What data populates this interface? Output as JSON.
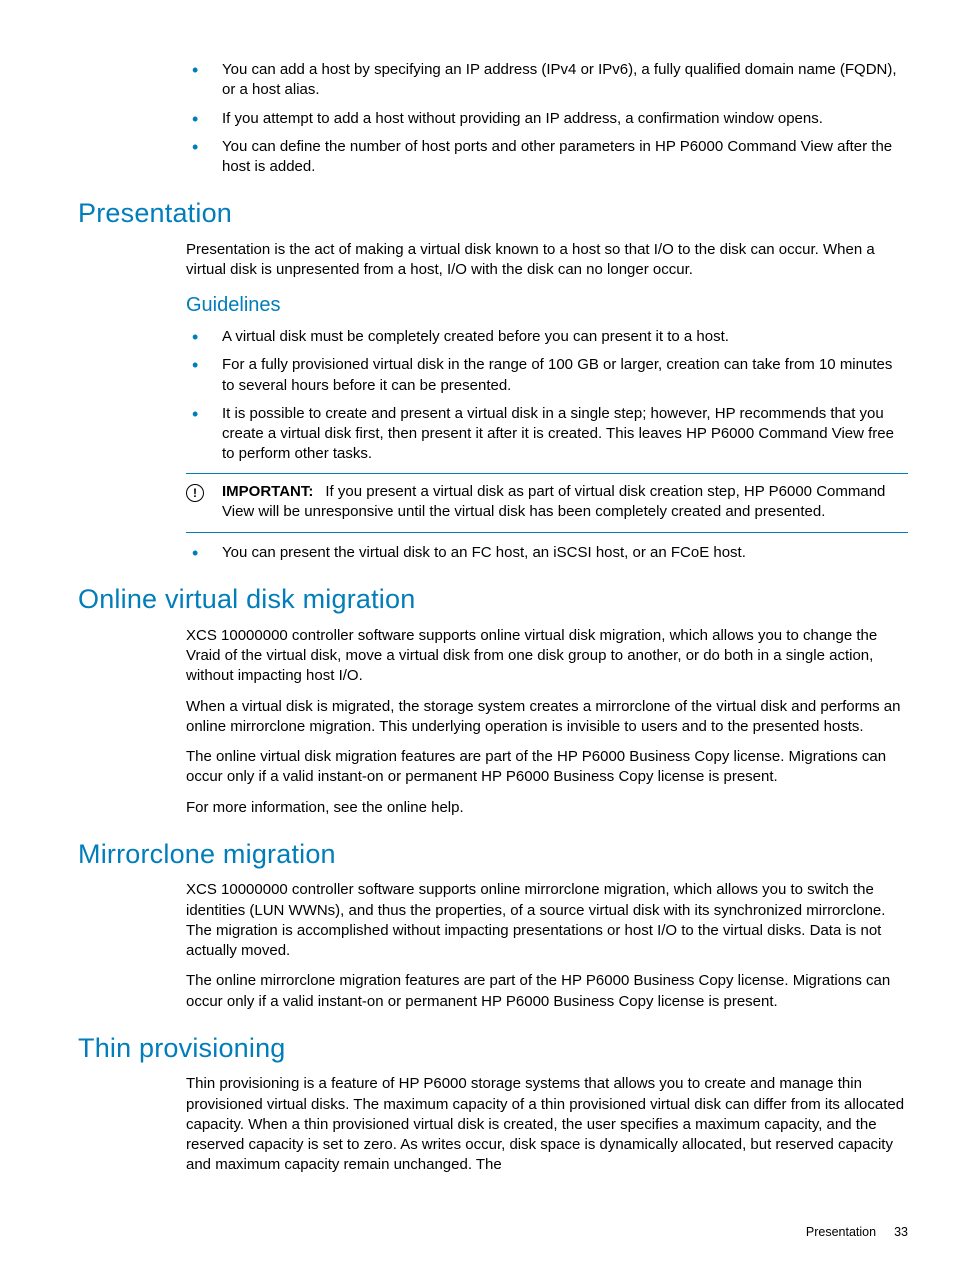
{
  "colors": {
    "accent": "#007dba",
    "text": "#000000",
    "bg": "#ffffff"
  },
  "intro_list": [
    "You can add a host by specifying an IP address (IPv4 or IPv6), a fully qualified domain name (FQDN), or a host alias.",
    "If you attempt to add a host without providing an IP address, a confirmation window opens.",
    "You can define the number of host ports and other parameters in HP P6000 Command View after the host is added."
  ],
  "presentation": {
    "heading": "Presentation",
    "para": "Presentation is the act of making a virtual disk known to a host so that I/O to the disk can occur. When a virtual disk is unpresented from a host, I/O with the disk can no longer occur.",
    "guidelines_heading": "Guidelines",
    "guidelines_pre": [
      "A virtual disk must be completely created before you can present it to a host.",
      "For a fully provisioned virtual disk in the range of 100 GB or larger, creation can take from 10 minutes to several hours before it can be presented.",
      "It is possible to create and present a virtual disk in a single step; however, HP recommends that you create a virtual disk first, then present it after it is created. This leaves HP P6000 Command View free to perform other tasks."
    ],
    "important_label": "IMPORTANT:",
    "important_text": "If you present a virtual disk as part of virtual disk creation step, HP P6000 Command View will be unresponsive until the virtual disk has been completely created and presented.",
    "guidelines_post": [
      "You can present the virtual disk to an FC host, an iSCSI host, or an FCoE host."
    ]
  },
  "migration": {
    "heading": "Online virtual disk migration",
    "p1": "XCS 10000000 controller software supports online virtual disk migration, which allows you to change the Vraid of the virtual disk, move a virtual disk from one disk group to another, or do both in a single action, without impacting host I/O.",
    "p2": "When a virtual disk is migrated, the storage system creates a mirrorclone of the virtual disk and performs an online mirrorclone migration. This underlying operation is invisible to users and to the presented hosts.",
    "p3": "The online virtual disk migration features are part of the HP P6000 Business Copy license. Migrations can occur only if a valid instant-on or permanent HP P6000 Business Copy license is present.",
    "p4": "For more information, see the online help."
  },
  "mirrorclone": {
    "heading": "Mirrorclone migration",
    "p1": "XCS 10000000 controller software supports online mirrorclone migration, which allows you to switch the identities (LUN WWNs), and thus the properties, of a source virtual disk with its synchronized mirrorclone. The migration is accomplished without impacting presentations or host I/O to the virtual disks. Data is not actually moved.",
    "p2": "The online mirrorclone migration features are part of the HP P6000 Business Copy license. Migrations can occur only if a valid instant-on or permanent HP P6000 Business Copy license is present."
  },
  "thin": {
    "heading": "Thin provisioning",
    "p1": "Thin provisioning is a feature of HP P6000 storage systems that allows you to create and manage thin provisioned virtual disks. The maximum capacity of a thin provisioned virtual disk can differ from its allocated capacity. When a thin provisioned virtual disk is created, the user specifies a maximum capacity, and the reserved capacity is set to zero. As writes occur, disk space is dynamically allocated, but reserved capacity and maximum capacity remain unchanged. The"
  },
  "footer": {
    "label": "Presentation",
    "page": "33"
  }
}
